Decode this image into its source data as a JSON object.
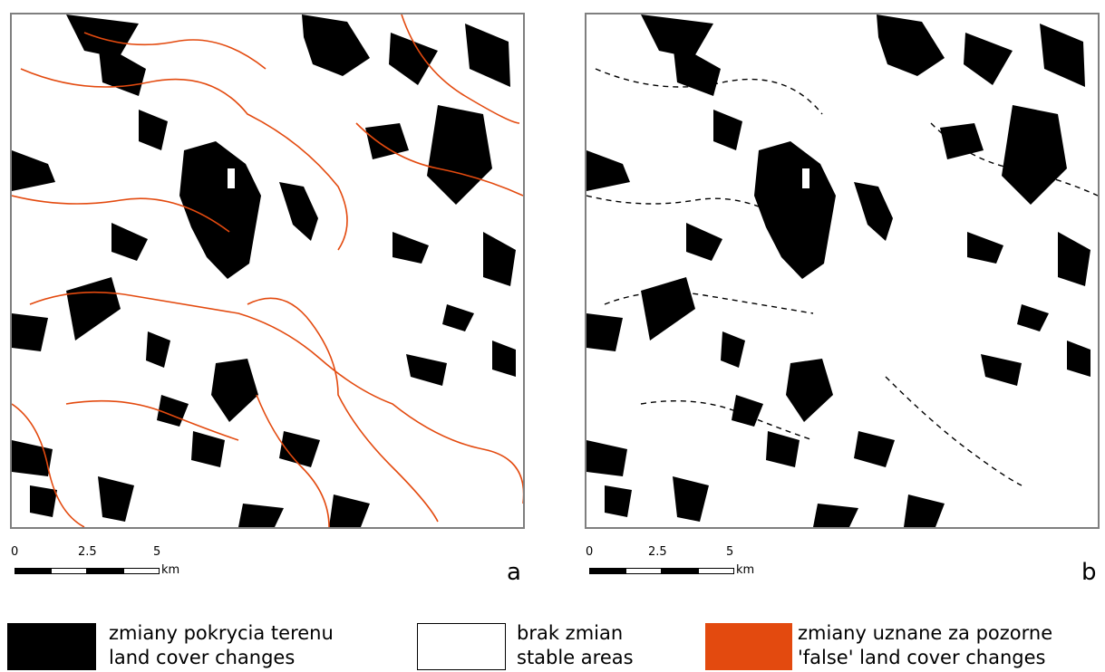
{
  "colors": {
    "change": "#000000",
    "stable": "#ffffff",
    "false_change": "#e34a0f",
    "frame": "#7f7f7f"
  },
  "scalebar": {
    "ticks": [
      "0",
      "2.5",
      "5"
    ],
    "unit": "km"
  },
  "panels": {
    "a": {
      "label": "a"
    },
    "b": {
      "label": "b"
    }
  },
  "legend": {
    "items": [
      {
        "line1": "zmiany pokrycia terenu",
        "line2": "land cover changes",
        "color": "#000000"
      },
      {
        "line1": "brak zmian",
        "line2": "stable areas",
        "color": "#ffffff"
      },
      {
        "line1": "zmiany uznane za pozorne",
        "line2": "'false' land cover changes",
        "color": "#e34a0f"
      }
    ]
  }
}
